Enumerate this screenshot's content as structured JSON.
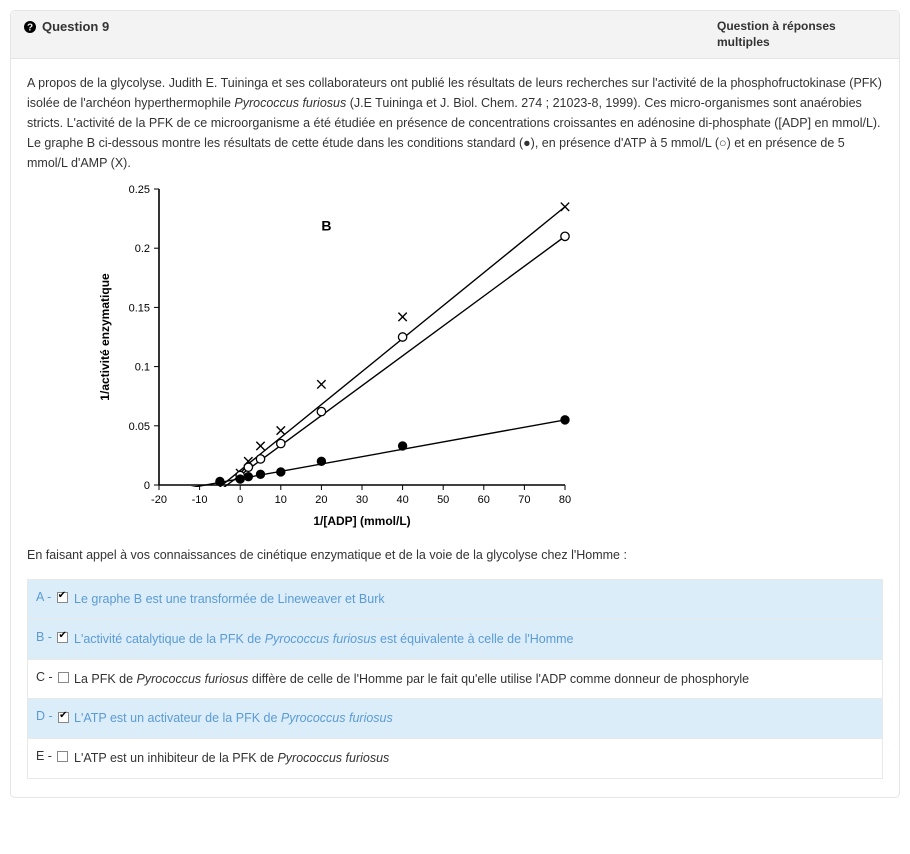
{
  "header": {
    "question_label": "Question 9",
    "question_type": "Question à réponses multiples"
  },
  "stem_html": "A propos de la glycolyse. Judith E. Tuininga et ses collaborateurs ont publié les résultats de leurs recherches sur l'activité de la phosphofructokinase (PFK) isolée de l'archéon hyperthermophile <em>Pyrococcus furiosus</em> (J.E Tuininga et J. Biol. Chem. 274 ; 21023-8, 1999). Ces micro-organismes sont anaérobies stricts. L'activité de la PFK de ce microorganisme a été étudiée en présence de concentrations croissantes en adénosine di-phosphate ([ADP] en mmol/L). Le graphe B ci-dessous montre les résultats de cette étude dans les conditions standard (●), en présence d'ATP à 5 mmol/L (○) et en présence de 5 mmol/L d'AMP (X).",
  "followup": "En faisant appel à vos connaissances de cinétique enzymatique et de la voie de la glycolyse chez l'Homme :",
  "chart": {
    "panel_label": "B",
    "xlabel": "1/[ADP] (mmol/L)",
    "ylabel": "1/activité enzymatique",
    "xlim": [
      -20,
      80
    ],
    "ylim": [
      0,
      0.25
    ],
    "xticks": [
      -20,
      -10,
      0,
      10,
      20,
      30,
      40,
      50,
      60,
      70,
      80
    ],
    "yticks": [
      0,
      0.05,
      0.1,
      0.15,
      0.2,
      0.25
    ],
    "axis_color": "#000000",
    "bg_color": "#ffffff",
    "line_color": "#000000",
    "line_width": 1.4,
    "marker_size": 4.2,
    "tick_fontsize": 11,
    "label_fontsize": 12,
    "panel_label_fontsize": 14,
    "series": [
      {
        "name": "AMP 5 mmol/L",
        "marker": "x",
        "fill": "none",
        "stroke": "#000000",
        "points": [
          [
            0,
            0.01
          ],
          [
            2,
            0.02
          ],
          [
            5,
            0.033
          ],
          [
            10,
            0.046
          ],
          [
            20,
            0.085
          ],
          [
            40,
            0.142
          ],
          [
            80,
            0.235
          ]
        ],
        "line_from": [
          -8,
          -0.01
        ],
        "line_to": [
          80,
          0.235
        ]
      },
      {
        "name": "ATP 5 mmol/L",
        "marker": "circle-open",
        "fill": "#ffffff",
        "stroke": "#000000",
        "points": [
          [
            0,
            0.008
          ],
          [
            2,
            0.015
          ],
          [
            5,
            0.022
          ],
          [
            10,
            0.035
          ],
          [
            20,
            0.062
          ],
          [
            40,
            0.125
          ],
          [
            80,
            0.21
          ]
        ],
        "line_from": [
          -8,
          -0.012
        ],
        "line_to": [
          80,
          0.21
        ]
      },
      {
        "name": "standard",
        "marker": "circle-filled",
        "fill": "#000000",
        "stroke": "#000000",
        "points": [
          [
            -5,
            0.003
          ],
          [
            0,
            0.005
          ],
          [
            2,
            0.007
          ],
          [
            5,
            0.009
          ],
          [
            10,
            0.011
          ],
          [
            20,
            0.02
          ],
          [
            40,
            0.033
          ],
          [
            80,
            0.055
          ]
        ],
        "line_from": [
          -15,
          -0.004
        ],
        "line_to": [
          80,
          0.055
        ]
      }
    ]
  },
  "answers": [
    {
      "letter": "A",
      "checked": true,
      "selected": true,
      "html": "Le graphe B est une transformée de Lineweaver et Burk"
    },
    {
      "letter": "B",
      "checked": true,
      "selected": true,
      "html": "L'activité catalytique de la PFK de <em>Pyrococcus furiosus</em> est équivalente à celle de l'Homme"
    },
    {
      "letter": "C",
      "checked": false,
      "selected": false,
      "html": "La PFK de <em>Pyrococcus furiosus</em> diffère de celle de l'Homme par le fait qu'elle utilise l'ADP comme donneur de phosphoryle"
    },
    {
      "letter": "D",
      "checked": true,
      "selected": true,
      "html": "L'ATP est un activateur de la PFK de <em>Pyrococcus furiosus</em>"
    },
    {
      "letter": "E",
      "checked": false,
      "selected": false,
      "html": "L'ATP est un inhibiteur de la PFK de <em>Pyrococcus furiosus</em>"
    }
  ]
}
